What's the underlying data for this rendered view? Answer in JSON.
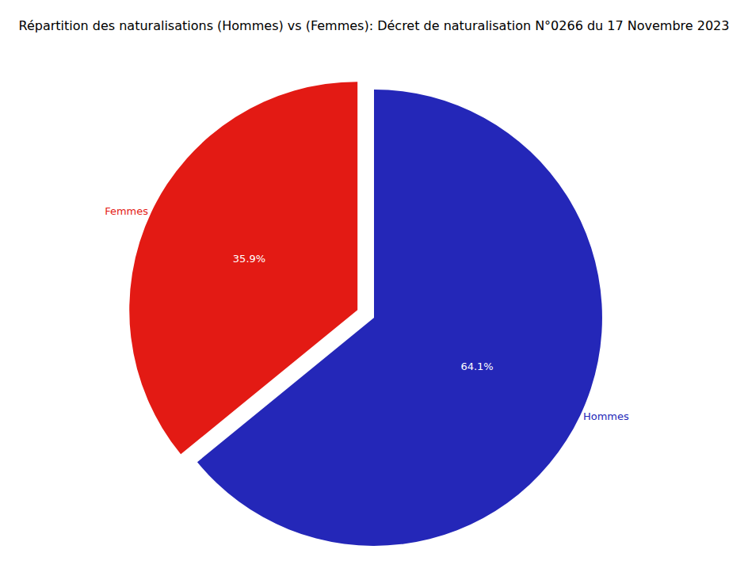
{
  "chart_data": {
    "type": "pie",
    "title": "Répartition des naturalisations (Hommes) vs (Femmes): Décret de naturalisation N°0266 du 17 Novembre 2023",
    "categories": [
      "Hommes",
      "Femmes"
    ],
    "values": [
      64.1,
      35.9
    ],
    "value_labels": [
      "64.1%",
      "35.9%"
    ],
    "colors": [
      "#2427b8",
      "#e31a14"
    ],
    "data_labels": true
  }
}
